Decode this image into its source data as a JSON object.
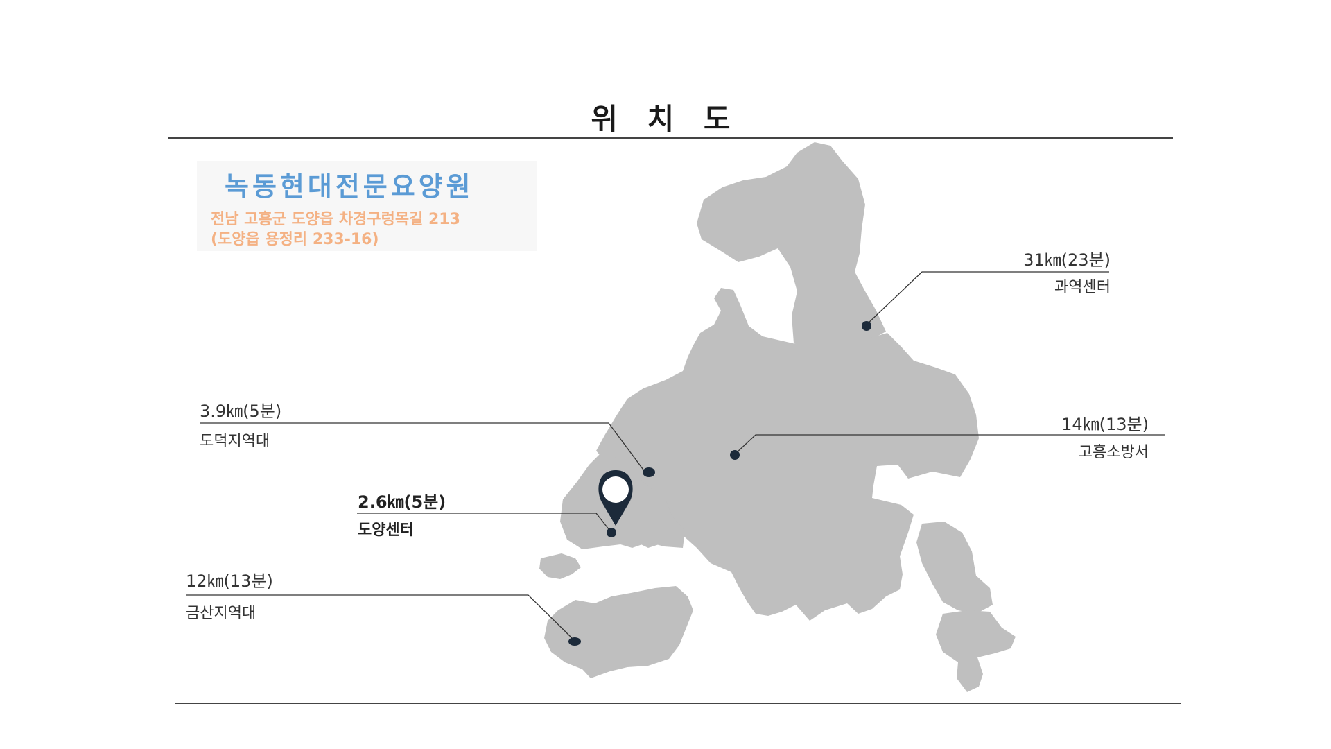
{
  "page": {
    "title": "위 치 도"
  },
  "facility": {
    "name": "녹동현대전문요양원",
    "address_line1": "전남 고흥군 도양읍 차경구렁목길 213",
    "address_line2": "(도양읍 용정리 233-16)"
  },
  "locations": [
    {
      "distance": "31㎞(23분)",
      "place": "과역센터"
    },
    {
      "distance": "14㎞(13분)",
      "place": "고흥소방서"
    },
    {
      "distance": "3.9㎞(5분)",
      "place": "도덕지역대"
    },
    {
      "distance": "2.6㎞(5분)",
      "place": "도양센터"
    },
    {
      "distance": "12㎞(13분)",
      "place": "금산지역대"
    }
  ],
  "colors": {
    "land": "#bfbfbf",
    "name_blue": "#5b9bd5",
    "address_orange": "#f4b183",
    "marker": "#1c2a3a"
  }
}
